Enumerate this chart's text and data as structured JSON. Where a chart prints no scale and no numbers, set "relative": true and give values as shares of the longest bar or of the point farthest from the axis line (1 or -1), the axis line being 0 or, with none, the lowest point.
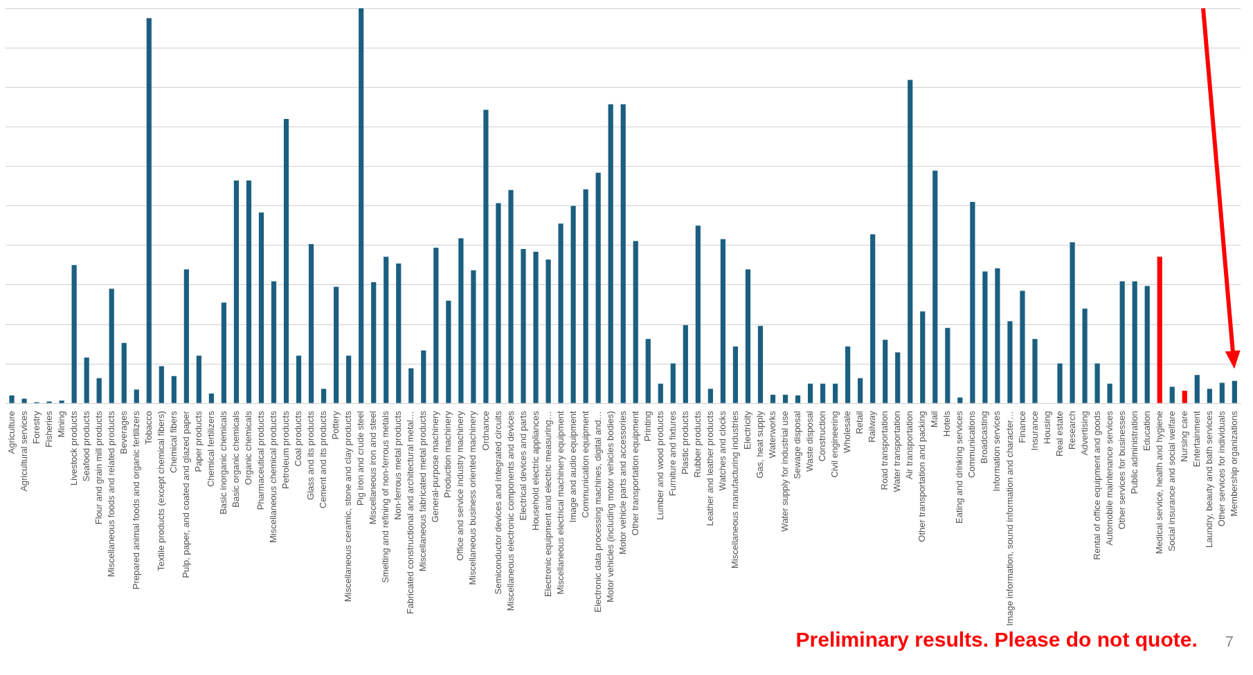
{
  "chart_data": {
    "type": "bar",
    "relative": true,
    "grid": "y",
    "categories": [
      "Agriculture",
      "Agricultural services",
      "Forestry",
      "Fisheries",
      "Mining",
      "Livestock products",
      "Seafood products",
      "Flour and grain mill products",
      "Miscellaneous foods and related products",
      "Beverages",
      "Prepared animal foods and organic fertilizers",
      "Tobacco",
      "Textile products (except chemical fibers)",
      "Chemical fibers",
      "Pulp, paper, and coated and glazed paper",
      "Paper products",
      "Chemical fertilizers",
      "Basic inorganic chemicals",
      "Basic organic chemicals",
      "Organic chemicals",
      "Pharmaceutical products",
      "Miscellaneous chemical products",
      "Petroleum products",
      "Coal products",
      "Glass and its products",
      "Cement and its products",
      "Pottery",
      "Miscellaneous ceramic, stone and clay products",
      "Pig iron and crude steel",
      "Miscellaneous iron and steel",
      "Smelting and refining of non-ferrous metals",
      "Non-ferrous metal products",
      "Fabricated constructional and architectural metal…",
      "Miscellaneous fabricated metal products",
      "General-purpose machinery",
      "Production machinery",
      "Office and service industry machinery",
      "Miscellaneous business oriented machinery",
      "Ordnance",
      "Semiconductor devices and integrated circuits",
      "Miscellaneous electronic components and devices",
      "Electrical devices and parts",
      "Household electric appliances",
      "Electronic equipment and electric measuring…",
      "Miscellaneous electrical machinery equipment",
      "Image and audio equipment",
      "Communication equipment",
      "Electronic data processing machines, digital and…",
      "Motor vehicles (including motor vehicles bodies)",
      "Motor vehicle parts and accessories",
      "Other transportation equipment",
      "Printing",
      "Lumber and wood products",
      "Furniture and fixtures",
      "Plastic products",
      "Rubber products",
      "Leather and leather products",
      "Watches and clocks",
      "Miscellaneous manufacturing industries",
      "Electricity",
      "Gas, heat supply",
      "Waterworks",
      "Water supply for industrial use",
      "Sewage disposal",
      "Waste disposal",
      "Construction",
      "Civil engineering",
      "Wholesale",
      "Retail",
      "Railway",
      "Road transportation",
      "Water transportation",
      "Air transportation",
      "Other transportation and packing",
      "Mail",
      "Hotels",
      "Eating and drinking services",
      "Communications",
      "Broadcasting",
      "Information services",
      "Image information, sound information and character…",
      "Finance",
      "Insurance",
      "Housing",
      "Real estate",
      "Research",
      "Advertising",
      "Rental of office equipment and goods",
      "Automobile maintenance services",
      "Other services for businesses",
      "Public administration",
      "Education",
      "Medical service, health and hygiene",
      "Social insurance and social welfare",
      "Nursing care",
      "Entertainment",
      "Laundry, beauty and bath services",
      "Other services for individuals",
      "Membership organizations"
    ],
    "values": [
      0.02,
      0.012,
      0.003,
      0.005,
      0.007,
      0.35,
      0.116,
      0.064,
      0.29,
      0.153,
      0.035,
      0.975,
      0.094,
      0.069,
      0.339,
      0.121,
      0.025,
      0.255,
      0.564,
      0.564,
      0.483,
      0.309,
      0.72,
      0.121,
      0.403,
      0.037,
      0.295,
      0.121,
      1,
      0.307,
      0.371,
      0.354,
      0.089,
      0.134,
      0.394,
      0.26,
      0.418,
      0.337,
      0.743,
      0.507,
      0.54,
      0.391,
      0.384,
      0.364,
      0.455,
      0.5,
      0.542,
      0.584,
      0.757,
      0.757,
      0.411,
      0.163,
      0.05,
      0.101,
      0.198,
      0.45,
      0.037,
      0.416,
      0.144,
      0.339,
      0.196,
      0.022,
      0.022,
      0.02,
      0.05,
      0.05,
      0.05,
      0.144,
      0.064,
      0.428,
      0.161,
      0.129,
      0.819,
      0.233,
      0.589,
      0.191,
      0.015,
      0.51,
      0.334,
      0.342,
      0.208,
      0.285,
      0.163,
      0,
      0.101,
      0.408,
      0.24,
      0.101,
      0.05,
      0.309,
      0.309,
      0.297,
      0.371,
      0.042,
      0.032,
      0.072,
      0.037,
      0.052,
      0.057
    ],
    "colors": [
      "#1b5f80",
      "#1b5f80",
      "#1b5f80",
      "#1b5f80",
      "#1b5f80",
      "#1b5f80",
      "#1b5f80",
      "#1b5f80",
      "#1b5f80",
      "#1b5f80",
      "#1b5f80",
      "#1b5f80",
      "#1b5f80",
      "#1b5f80",
      "#1b5f80",
      "#1b5f80",
      "#1b5f80",
      "#1b5f80",
      "#1b5f80",
      "#1b5f80",
      "#1b5f80",
      "#1b5f80",
      "#1b5f80",
      "#1b5f80",
      "#1b5f80",
      "#1b5f80",
      "#1b5f80",
      "#1b5f80",
      "#1b5f80",
      "#1b5f80",
      "#1b5f80",
      "#1b5f80",
      "#1b5f80",
      "#1b5f80",
      "#1b5f80",
      "#1b5f80",
      "#1b5f80",
      "#1b5f80",
      "#1b5f80",
      "#1b5f80",
      "#1b5f80",
      "#1b5f80",
      "#1b5f80",
      "#1b5f80",
      "#1b5f80",
      "#1b5f80",
      "#1b5f80",
      "#1b5f80",
      "#1b5f80",
      "#1b5f80",
      "#1b5f80",
      "#1b5f80",
      "#1b5f80",
      "#1b5f80",
      "#1b5f80",
      "#1b5f80",
      "#1b5f80",
      "#1b5f80",
      "#1b5f80",
      "#1b5f80",
      "#1b5f80",
      "#1b5f80",
      "#1b5f80",
      "#1b5f80",
      "#1b5f80",
      "#1b5f80",
      "#1b5f80",
      "#1b5f80",
      "#1b5f80",
      "#1b5f80",
      "#1b5f80",
      "#1b5f80",
      "#1b5f80",
      "#1b5f80",
      "#1b5f80",
      "#1b5f80",
      "#1b5f80",
      "#1b5f80",
      "#1b5f80",
      "#1b5f80",
      "#1b5f80",
      "#1b5f80",
      "#1b5f80",
      "#1b5f80",
      "#1b5f80",
      "#1b5f80",
      "#1b5f80",
      "#1b5f80",
      "#1b5f80",
      "#1b5f80",
      "#1b5f80",
      "#1b5f80",
      "#ff0000",
      "#1b5f80",
      "#ff0000",
      "#1b5f80",
      "#1b5f80",
      "#1b5f80",
      "#1b5f80"
    ],
    "annotations": [
      "Preliminary results. Please do not quote.",
      "7"
    ]
  }
}
